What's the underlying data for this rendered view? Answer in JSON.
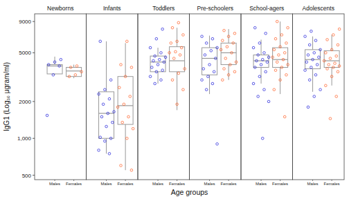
{
  "chart_data": {
    "type": "boxplot",
    "x_label": "Age groups",
    "y_label": "IgG1 (Log₁₀ μgram/ml)",
    "log": "y",
    "ylim": [
      460,
      10400
    ],
    "yticks": [
      500,
      {
        "value": 1000,
        "label": "1,000"
      },
      2000,
      5000,
      9000
    ],
    "colors": [
      "#1a1ad8",
      "#ff5a1f"
    ],
    "marker": "circle",
    "facets": [
      {
        "title": "Newborns",
        "categories": [
          "Males",
          "Females"
        ],
        "boxes": [
          {
            "min": 3300,
            "q1": 3360,
            "median": 3900,
            "q3": 4000,
            "max": 4650
          },
          {
            "min": 3100,
            "q1": 3200,
            "median": 3550,
            "q3": 3800,
            "max": 4000
          }
        ],
        "points": [
          [
            1540,
            3300,
            3900,
            4000,
            4200,
            4400
          ],
          [
            3200,
            3300,
            3500,
            3800,
            3900
          ]
        ]
      },
      {
        "title": "Infants",
        "categories": [
          "Males",
          "Females"
        ],
        "boxes": [
          {
            "min": 750,
            "q1": 1000,
            "median": 1600,
            "q3": 2400,
            "max": 6200
          },
          {
            "min": 550,
            "q1": 1300,
            "median": 1850,
            "q3": 3200,
            "max": 6000
          }
        ],
        "points": [
          [
            750,
            800,
            950,
            1000,
            1020,
            1250,
            1350,
            1500,
            1600,
            1650,
            1900,
            2100,
            2300,
            2500,
            3000,
            6200
          ],
          [
            550,
            600,
            1000,
            1200,
            1350,
            1500,
            1800,
            1900,
            2200,
            2600,
            3200,
            3800,
            4000,
            6200
          ]
        ]
      },
      {
        "title": "Toddlers",
        "categories": [
          "Males",
          "Females"
        ],
        "boxes": [
          {
            "min": 2800,
            "q1": 3500,
            "median": 4200,
            "q3": 4700,
            "max": 5500
          },
          {
            "min": 1700,
            "q1": 3500,
            "median": 4300,
            "q3": 5600,
            "max": 8000
          }
        ],
        "points": [
          [
            2800,
            3000,
            3200,
            3500,
            3600,
            3800,
            4000,
            4200,
            4300,
            4400,
            4600,
            4700,
            5000,
            5500,
            6500,
            7800
          ],
          [
            1900,
            2500,
            3000,
            3400,
            3700,
            4500,
            4800,
            5000,
            5100,
            5500,
            6000,
            6200,
            7000,
            8000,
            8800
          ]
        ]
      },
      {
        "title": "Pre-schoolers",
        "categories": [
          "Males",
          "Females"
        ],
        "boxes": [
          {
            "min": 2300,
            "q1": 3300,
            "median": 4500,
            "q3": 5500,
            "max": 6900
          },
          {
            "min": 3000,
            "q1": 4000,
            "median": 5000,
            "q3": 6000,
            "max": 7800
          }
        ],
        "points": [
          [
            900,
            2500,
            2800,
            3000,
            3200,
            3500,
            3700,
            4000,
            4500,
            4800,
            5200,
            5500,
            6000,
            6500,
            6800
          ],
          [
            3000,
            3300,
            3500,
            3700,
            4000,
            4200,
            4500,
            5000,
            5300,
            5600,
            6000,
            6300,
            6800,
            7200,
            7600
          ]
        ]
      },
      {
        "title": "School-agers",
        "categories": [
          "Males",
          "Females"
        ],
        "boxes": [
          {
            "min": 2800,
            "q1": 3800,
            "median": 4300,
            "q3": 4800,
            "max": 6400
          },
          {
            "min": 2300,
            "q1": 3800,
            "median": 4400,
            "q3": 5500,
            "max": 9000
          }
        ],
        "points": [
          [
            1000,
            2000,
            2200,
            2500,
            2800,
            3200,
            3500,
            3800,
            4000,
            4200,
            4300,
            4400,
            4600,
            4800,
            5000,
            5500,
            6000,
            7200,
            8000
          ],
          [
            1500,
            2500,
            3000,
            3300,
            3600,
            3800,
            4000,
            4200,
            4400,
            4600,
            4800,
            5000,
            5300,
            5600,
            6000,
            6500,
            7000,
            8000,
            9000
          ]
        ]
      },
      {
        "title": "Adolescents",
        "categories": [
          "Males",
          "Females"
        ],
        "boxes": [
          {
            "min": 2400,
            "q1": 3700,
            "median": 4400,
            "q3": 5300,
            "max": 6800
          },
          {
            "min": 2700,
            "q1": 3800,
            "median": 4300,
            "q3": 5200,
            "max": 7000
          }
        ],
        "points": [
          [
            1800,
            2200,
            2500,
            3000,
            3300,
            3600,
            3800,
            4000,
            4200,
            4400,
            4600,
            4800,
            5000,
            5300,
            5800,
            6300,
            6800,
            7500
          ],
          [
            1450,
            2200,
            2700,
            3200,
            3500,
            3700,
            3800,
            3900,
            4000,
            4100,
            4300,
            4500,
            4700,
            5000,
            5300,
            5800,
            6400,
            7000,
            7800
          ]
        ]
      }
    ]
  }
}
